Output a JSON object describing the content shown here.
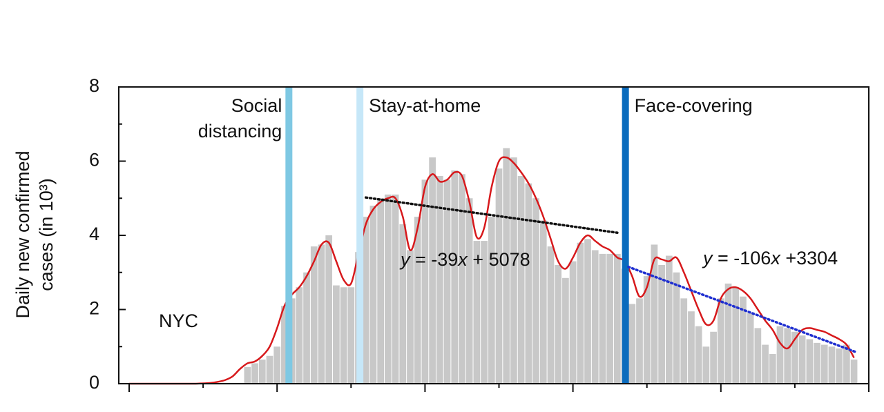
{
  "chart_data": {
    "type": "bar",
    "y_label": [
      "Daily new confirmed",
      "cases (in 10³)"
    ],
    "annotation": "NYC",
    "x": [
      0,
      1,
      2,
      3,
      4,
      5,
      6,
      7,
      8,
      9,
      10,
      11,
      12,
      13,
      14,
      15,
      16,
      17,
      18,
      19,
      20,
      21,
      22,
      23,
      24,
      25,
      26,
      27,
      28,
      29,
      30,
      31,
      32,
      33,
      34,
      35,
      36,
      37,
      38,
      39,
      40,
      41,
      42,
      43,
      44,
      45,
      46,
      47,
      48,
      49,
      50,
      51,
      52,
      53,
      54,
      55,
      56,
      57,
      58,
      59,
      60,
      61,
      62,
      63,
      64,
      65,
      66,
      67,
      68,
      69,
      70,
      71,
      72,
      73,
      74,
      75,
      76,
      77,
      78,
      79,
      80,
      81,
      82,
      83,
      84,
      85,
      86,
      87,
      88,
      89,
      90,
      91,
      92,
      93,
      94,
      95,
      96,
      97,
      98
    ],
    "values": [
      0,
      0,
      0,
      0,
      0,
      0,
      0,
      0,
      0,
      0,
      0,
      0,
      0,
      0,
      0,
      0,
      0.45,
      0.55,
      0.65,
      0.75,
      1.0,
      2.1,
      2.3,
      2.6,
      3.0,
      3.7,
      3.75,
      4.0,
      2.65,
      2.6,
      2.6,
      3.55,
      4.5,
      4.8,
      5.0,
      5.1,
      5.1,
      4.3,
      3.6,
      4.5,
      5.5,
      6.1,
      5.6,
      5.5,
      5.75,
      5.65,
      5.0,
      3.85,
      3.85,
      4.5,
      5.8,
      6.35,
      6.1,
      5.6,
      5.4,
      5.0,
      4.4,
      3.7,
      3.2,
      2.85,
      3.3,
      3.8,
      3.9,
      3.6,
      3.5,
      3.5,
      3.5,
      3.1,
      2.15,
      2.3,
      2.9,
      3.75,
      3.2,
      3.45,
      3.0,
      2.3,
      1.95,
      1.55,
      1.0,
      1.4,
      2.3,
      2.7,
      2.6,
      2.35,
      1.9,
      1.5,
      1.05,
      0.8,
      1.55,
      1.5,
      1.4,
      1.3,
      1.2,
      1.1,
      1.05,
      1.0,
      0.95,
      1.05,
      0.65
    ],
    "color": "#c8c8c8",
    "smooth": {
      "color": "#d7191c",
      "values": [
        0,
        0,
        0,
        0,
        0,
        0,
        0,
        0,
        0,
        0,
        0.01,
        0.02,
        0.05,
        0.1,
        0.2,
        0.4,
        0.55,
        0.6,
        0.75,
        1.0,
        1.5,
        2.1,
        2.4,
        2.6,
        2.9,
        3.3,
        3.75,
        3.8,
        3.3,
        2.8,
        2.7,
        3.5,
        4.3,
        4.7,
        4.9,
        5.0,
        5.0,
        4.5,
        3.6,
        4.2,
        5.3,
        5.65,
        5.45,
        5.5,
        5.7,
        5.6,
        4.9,
        3.95,
        4.2,
        5.3,
        6.0,
        6.1,
        5.95,
        5.7,
        5.4,
        5.0,
        4.5,
        3.9,
        3.3,
        3.1,
        3.4,
        3.8,
        4.0,
        3.85,
        3.7,
        3.6,
        3.4,
        3.3,
        2.9,
        2.35,
        2.6,
        3.35,
        3.35,
        3.3,
        3.4,
        3.0,
        2.5,
        2.0,
        1.6,
        1.7,
        2.3,
        2.55,
        2.6,
        2.5,
        2.3,
        2.0,
        1.7,
        1.45,
        1.1,
        0.95,
        1.2,
        1.45,
        1.5,
        1.45,
        1.4,
        1.3,
        1.2,
        1.05,
        0.7
      ]
    },
    "interventions": [
      {
        "label": [
          "Social",
          "distancing"
        ],
        "x": 21.6,
        "color": "#7ec8e3"
      },
      {
        "label": [
          "Stay-at-home"
        ],
        "x": 31.2,
        "color": "#c6e7f8"
      },
      {
        "label": [
          "Face-covering"
        ],
        "x": 67.1,
        "color": "#0a6bbd"
      }
    ],
    "trends": [
      {
        "x": [
          32,
          66
        ],
        "y": [
          5.02,
          4.07
        ],
        "color": "#111111",
        "equation": [
          "y",
          " = -39",
          "x",
          " + 5078"
        ]
      },
      {
        "x": [
          67.5,
          98.3
        ],
        "y": [
          3.15,
          0.85
        ],
        "color": "#1f2fd0",
        "equation": [
          "y",
          " = -106",
          "x",
          " +3304"
        ]
      }
    ],
    "xlim": [
      -1.4,
      100
    ],
    "xticks": [
      0,
      20,
      40,
      60,
      80,
      100
    ],
    "xminorticks": [
      10,
      30,
      50,
      70,
      90
    ],
    "ylim": [
      0,
      8
    ],
    "yticks": [
      0,
      2,
      4,
      6,
      8
    ],
    "yminorticks": [
      1,
      3,
      5,
      7
    ]
  }
}
